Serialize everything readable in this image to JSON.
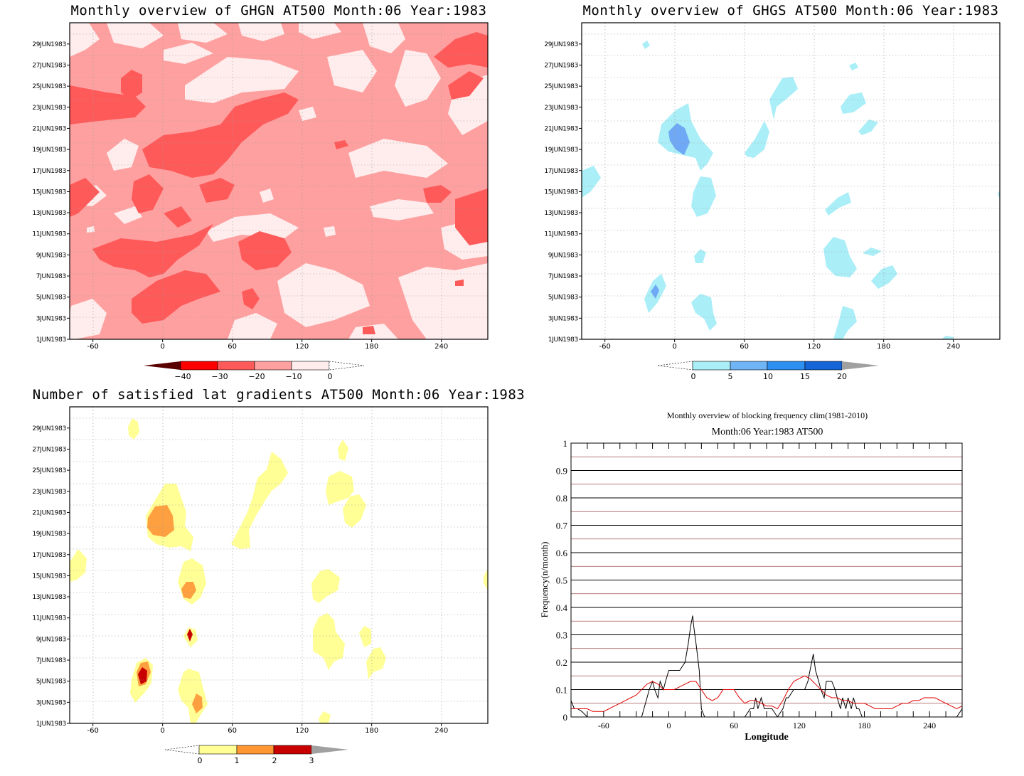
{
  "panels": [
    {
      "id": "ghgn",
      "title": "Monthly overview of GHGN AT500 Month:06 Year:1983",
      "x_ticks": [
        -60,
        0,
        60,
        120,
        180,
        240
      ],
      "y_ticks": [
        "1JUN1983",
        "3JUN1983",
        "5JUN1983",
        "7JUN1983",
        "9JUN1983",
        "11JUN1983",
        "13JUN1983",
        "15JUN1983",
        "17JUN1983",
        "19JUN1983",
        "21JUN1983",
        "23JUN1983",
        "25JUN1983",
        "27JUN1983",
        "29JUN1983"
      ],
      "colorbar": {
        "labels": [
          "−40",
          "−30",
          "−20",
          "−10",
          "0"
        ],
        "colors": [
          "#5a0000",
          "#ff0000",
          "#ff5a5a",
          "#ffa0a0",
          "#ffeded"
        ]
      },
      "palette": {
        "background": "#ffa0a0",
        "dark": "#ff5a5a",
        "light": "#ffeded"
      }
    },
    {
      "id": "ghgs",
      "title": "Monthly overview of GHGS AT500 Month:06 Year:1983",
      "x_ticks": [
        -60,
        0,
        60,
        120,
        180,
        240
      ],
      "y_ticks": [
        "1JUN1983",
        "3JUN1983",
        "5JUN1983",
        "7JUN1983",
        "9JUN1983",
        "11JUN1983",
        "13JUN1983",
        "15JUN1983",
        "17JUN1983",
        "19JUN1983",
        "21JUN1983",
        "23JUN1983",
        "25JUN1983",
        "27JUN1983",
        "29JUN1983"
      ],
      "colorbar": {
        "labels": [
          "0",
          "5",
          "10",
          "15",
          "20"
        ],
        "colors": [
          "#aaeef7",
          "#6fb4f4",
          "#2d8ff0",
          "#1565d8",
          "#a0a0a0"
        ]
      },
      "palette": {
        "light": "#aaeef7",
        "mid": "#6fa8f4"
      }
    },
    {
      "id": "gradients",
      "title": "Number of satisfied lat gradients AT500 Month:06 Year:1983",
      "x_ticks": [
        -60,
        0,
        60,
        120,
        180,
        240
      ],
      "y_ticks": [
        "1JUN1983",
        "3JUN1983",
        "5JUN1983",
        "7JUN1983",
        "9JUN1983",
        "11JUN1983",
        "13JUN1983",
        "15JUN1983",
        "17JUN1983",
        "19JUN1983",
        "21JUN1983",
        "23JUN1983",
        "25JUN1983",
        "27JUN1983",
        "29JUN1983"
      ],
      "colorbar": {
        "labels": [
          "0",
          "1",
          "2",
          "3"
        ],
        "colors": [
          "#ffff96",
          "#ff9632",
          "#c80000",
          "#a0a0a0"
        ]
      },
      "palette": {
        "yellow": "#ffff96",
        "orange": "#ffa040",
        "red": "#c80000"
      }
    }
  ],
  "chart_data": {
    "type": "line",
    "title": "Monthly overview of blocking frequency clim(1981-2010)",
    "subtitle": "Month:06 Year:1983  AT500",
    "xlabel": "Longitude",
    "ylabel": "Frequency(n/month)",
    "xlim": [
      -90,
      270
    ],
    "ylim": [
      0,
      1
    ],
    "x_ticks": [
      -60,
      0,
      60,
      120,
      180,
      240
    ],
    "y_ticks": [
      "0",
      "0.1",
      "0.2",
      "0.3",
      "0.4",
      "0.5",
      "0.6",
      "0.7",
      "0.8",
      "0.9",
      "1"
    ],
    "grid": true,
    "series": [
      {
        "color": "#000000",
        "x": [
          -90,
          -87,
          -84,
          -80,
          -75,
          -70,
          -65,
          -60,
          -55,
          -50,
          -45,
          -40,
          -35,
          -30,
          -25,
          -20,
          -18,
          -15,
          -13,
          -10,
          -8,
          -5,
          -3,
          0,
          5,
          10,
          15,
          18,
          20,
          22,
          23,
          25,
          28,
          30,
          33,
          35,
          38,
          40,
          45,
          50,
          55,
          60,
          65,
          70,
          75,
          78,
          80,
          82,
          85,
          88,
          90,
          95,
          100,
          105,
          108,
          110,
          115,
          120,
          125,
          128,
          130,
          133,
          135,
          138,
          140,
          143,
          145,
          150,
          153,
          155,
          158,
          160,
          163,
          165,
          168,
          170,
          173,
          175,
          178,
          180,
          185,
          190,
          195,
          200,
          205,
          210,
          215,
          220,
          225,
          230,
          235,
          240,
          245,
          250,
          255,
          260,
          265,
          270
        ],
        "y": [
          0.06,
          0.03,
          0.03,
          0.02,
          0.0,
          0.0,
          0.0,
          0.0,
          0.0,
          0.0,
          0.0,
          0.0,
          0.0,
          0.0,
          0.0,
          0.07,
          0.1,
          0.13,
          0.1,
          0.07,
          0.13,
          0.1,
          0.13,
          0.17,
          0.17,
          0.17,
          0.2,
          0.27,
          0.33,
          0.37,
          0.33,
          0.27,
          0.17,
          0.03,
          0.0,
          0.0,
          0.0,
          0.0,
          0.0,
          0.0,
          0.0,
          0.0,
          0.0,
          0.0,
          0.03,
          0.03,
          0.07,
          0.03,
          0.07,
          0.03,
          0.03,
          0.03,
          0.0,
          0.03,
          0.07,
          0.07,
          0.1,
          0.1,
          0.1,
          0.13,
          0.17,
          0.23,
          0.17,
          0.13,
          0.1,
          0.07,
          0.13,
          0.13,
          0.1,
          0.07,
          0.03,
          0.07,
          0.03,
          0.07,
          0.03,
          0.07,
          0.03,
          0.03,
          0.0,
          0.0,
          0.0,
          0.0,
          0.0,
          0.0,
          0.0,
          0.0,
          0.0,
          0.0,
          0.0,
          0.0,
          0.0,
          0.0,
          0.0,
          0.0,
          0.0,
          0.0,
          0.0,
          0.03
        ]
      },
      {
        "color": "#e00000",
        "x": [
          -90,
          -85,
          -80,
          -75,
          -70,
          -65,
          -60,
          -55,
          -50,
          -45,
          -40,
          -35,
          -30,
          -25,
          -20,
          -15,
          -10,
          -5,
          0,
          5,
          10,
          15,
          20,
          25,
          30,
          35,
          40,
          45,
          50,
          55,
          60,
          65,
          70,
          75,
          80,
          85,
          90,
          95,
          100,
          105,
          110,
          115,
          120,
          125,
          130,
          135,
          140,
          145,
          150,
          155,
          160,
          165,
          170,
          175,
          180,
          185,
          190,
          195,
          200,
          205,
          210,
          215,
          220,
          225,
          230,
          235,
          240,
          245,
          250,
          255,
          260,
          265,
          270
        ],
        "y": [
          0.03,
          0.03,
          0.03,
          0.03,
          0.02,
          0.02,
          0.02,
          0.03,
          0.04,
          0.05,
          0.06,
          0.07,
          0.08,
          0.1,
          0.12,
          0.13,
          0.12,
          0.1,
          0.1,
          0.1,
          0.11,
          0.12,
          0.13,
          0.13,
          0.1,
          0.07,
          0.06,
          0.07,
          0.1,
          0.1,
          0.1,
          0.07,
          0.05,
          0.06,
          0.06,
          0.05,
          0.04,
          0.04,
          0.03,
          0.06,
          0.1,
          0.13,
          0.14,
          0.15,
          0.14,
          0.12,
          0.1,
          0.08,
          0.07,
          0.07,
          0.06,
          0.06,
          0.05,
          0.05,
          0.05,
          0.04,
          0.03,
          0.03,
          0.03,
          0.03,
          0.04,
          0.05,
          0.05,
          0.06,
          0.06,
          0.07,
          0.07,
          0.07,
          0.06,
          0.05,
          0.04,
          0.03,
          0.04
        ]
      }
    ]
  }
}
